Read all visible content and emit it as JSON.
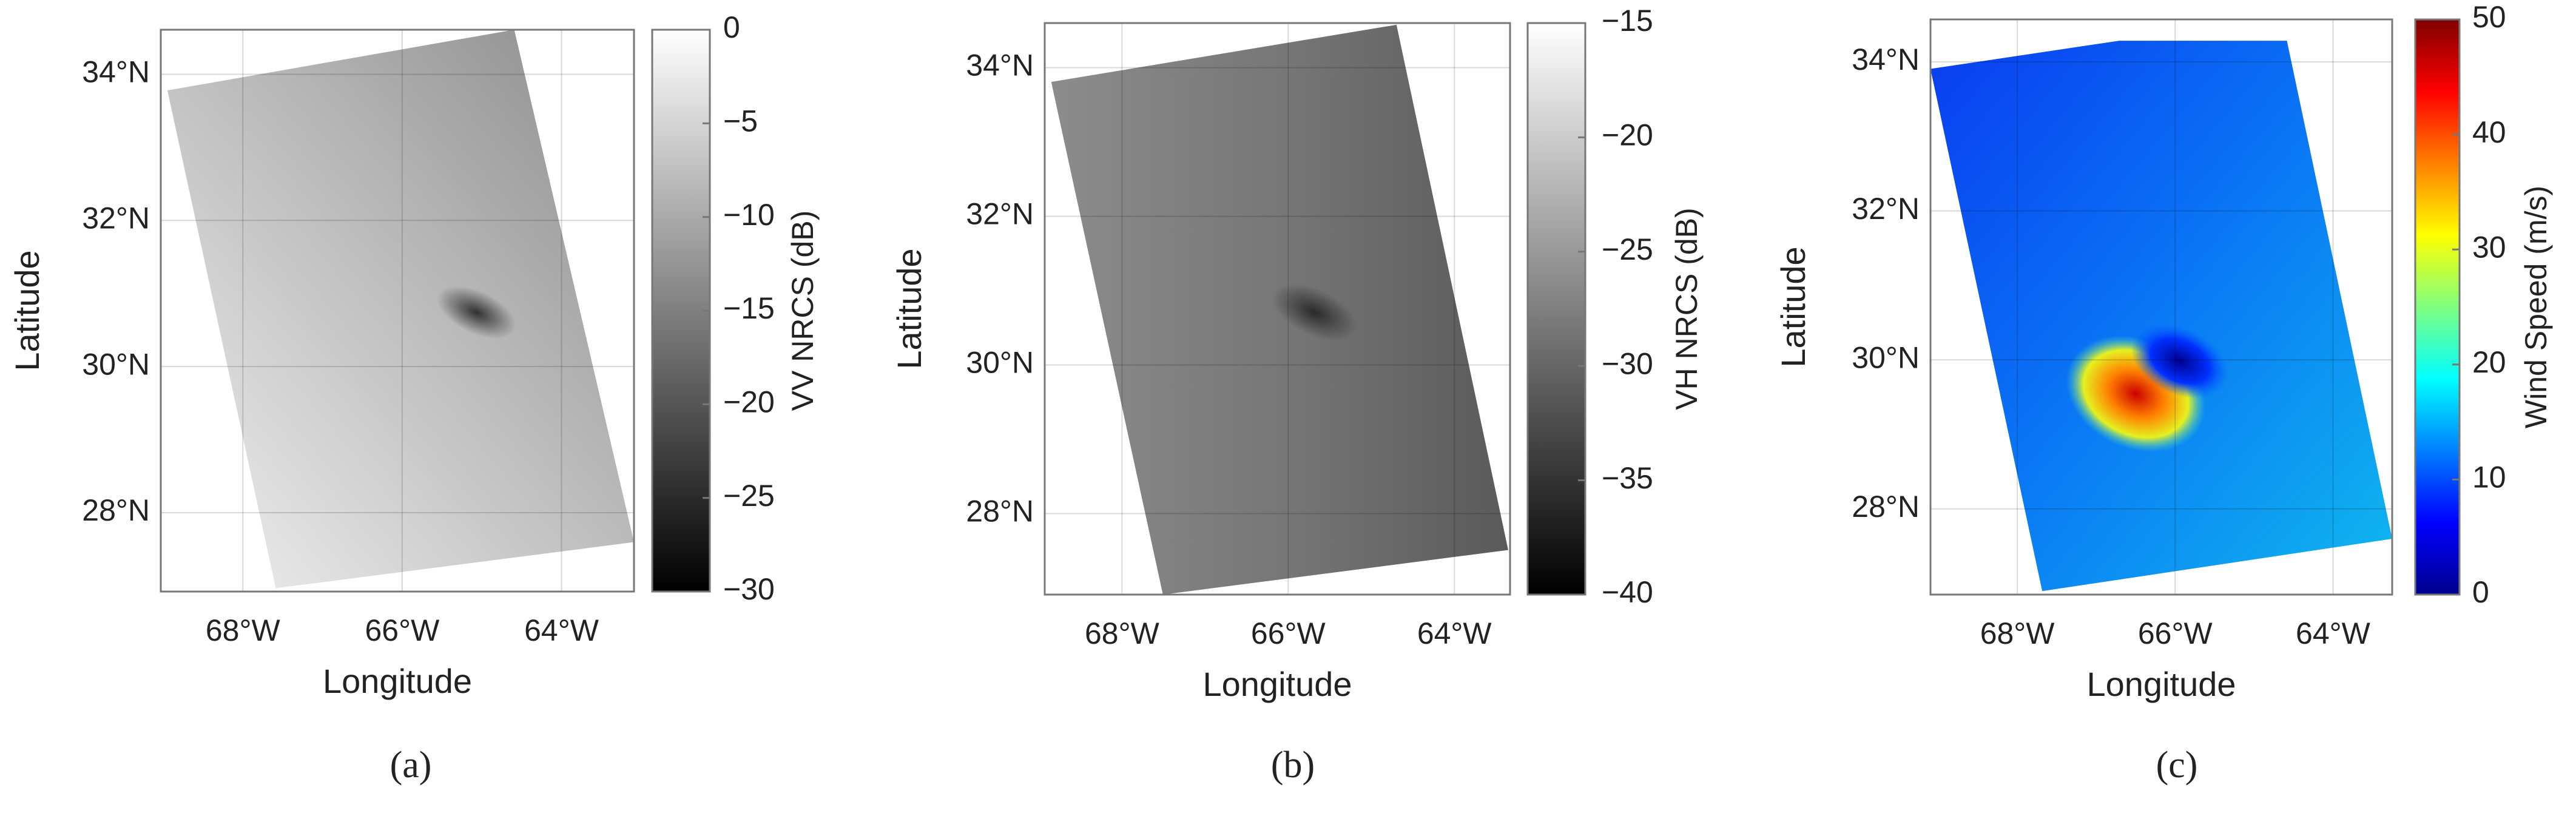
{
  "chart_data": [
    {
      "type": "map",
      "xlabel": "Longitude",
      "ylabel": "Latitude",
      "panel_label": "(a)",
      "colormap": "gray",
      "grid": true,
      "xlim": [
        -69.03,
        -63.09
      ],
      "ylim": [
        26.92,
        34.61
      ],
      "xticks": [
        {
          "value": -68,
          "label": "68°W"
        },
        {
          "value": -66,
          "label": "66°W"
        },
        {
          "value": -64,
          "label": "64°W"
        }
      ],
      "yticks": [
        {
          "value": 28,
          "label": "28°N"
        },
        {
          "value": 30,
          "label": "30°N"
        },
        {
          "value": 32,
          "label": "32°N"
        },
        {
          "value": 34,
          "label": "34°N"
        }
      ],
      "colorbar_label": "VV NRCS (dB)",
      "clim": [
        -30,
        0
      ],
      "cticks": [
        0,
        {
          "value": -5,
          "label": "−5"
        },
        {
          "value": -10,
          "label": "−10"
        },
        {
          "value": -15,
          "label": "−15"
        },
        {
          "value": -20,
          "label": "−20"
        },
        {
          "value": -25,
          "label": "−25"
        },
        {
          "value": -30,
          "label": "−30"
        }
      ]
    },
    {
      "type": "map",
      "xlabel": "Longitude",
      "ylabel": "Latitude",
      "panel_label": "(b)",
      "colormap": "gray",
      "grid": true,
      "xlim": [
        -68.93,
        -63.33
      ],
      "ylim": [
        26.91,
        34.6
      ],
      "xticks": [
        {
          "value": -68,
          "label": "68°W"
        },
        {
          "value": -66,
          "label": "66°W"
        },
        {
          "value": -64,
          "label": "64°W"
        }
      ],
      "yticks": [
        {
          "value": 28,
          "label": "28°N"
        },
        {
          "value": 30,
          "label": "30°N"
        },
        {
          "value": 32,
          "label": "32°N"
        },
        {
          "value": 34,
          "label": "34°N"
        }
      ],
      "colorbar_label": "VH NRCS (dB)",
      "clim": [
        -40,
        -15
      ],
      "cticks": [
        {
          "value": -15,
          "label": "−15"
        },
        {
          "value": -20,
          "label": "−20"
        },
        {
          "value": -25,
          "label": "−25"
        },
        {
          "value": -30,
          "label": "−30"
        },
        {
          "value": -35,
          "label": "−35"
        },
        {
          "value": -40,
          "label": "−40"
        }
      ]
    },
    {
      "type": "map",
      "xlabel": "Longitude",
      "ylabel": "Latitude",
      "panel_label": "(c)",
      "colormap": "jet",
      "grid": true,
      "xlim": [
        -69.1,
        -63.25
      ],
      "ylim": [
        26.85,
        34.57
      ],
      "xticks": [
        {
          "value": -68,
          "label": "68°W"
        },
        {
          "value": -66,
          "label": "66°W"
        },
        {
          "value": -64,
          "label": "64°W"
        }
      ],
      "yticks": [
        {
          "value": 28,
          "label": "28°N"
        },
        {
          "value": 30,
          "label": "30°N"
        },
        {
          "value": 32,
          "label": "32°N"
        },
        {
          "value": 34,
          "label": "34°N"
        }
      ],
      "colorbar_label": "Wind Speed (m/s)",
      "clim": [
        0,
        50
      ],
      "cticks": [
        0,
        10,
        20,
        30,
        40,
        50
      ]
    }
  ]
}
